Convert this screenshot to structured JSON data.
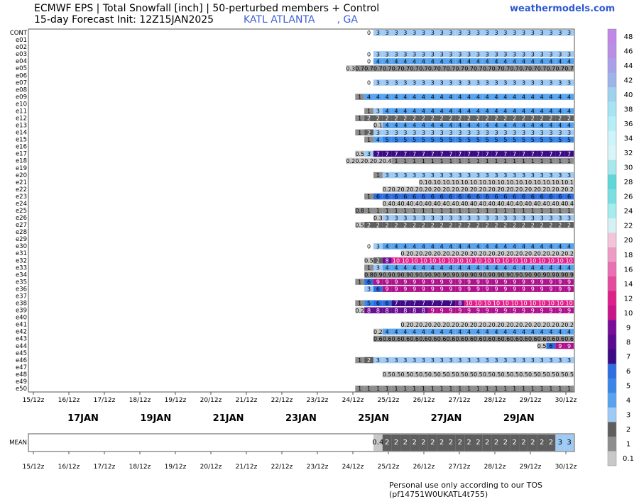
{
  "header": {
    "title_line1": "ECMWF EPS | Total Snowfall [inch] | 50-perturbed members + Control",
    "title_line2": "15-day Forecast Init: 12Z15JAN2025",
    "station": "KATL ATLANTA       , GA",
    "brand": "weathermodels.com"
  },
  "footer": "Personal use only according to our TOS (pf14751W0UKATL4t755)",
  "chart_data": {
    "type": "heatmap",
    "x_tick_labels": [
      "15/12z",
      "16/12z",
      "17/12z",
      "18/12z",
      "19/12z",
      "20/12z",
      "21/12z",
      "22/12z",
      "23/12z",
      "24/12z",
      "25/12z",
      "26/12z",
      "27/12z",
      "28/12z",
      "29/12z",
      "30/12z"
    ],
    "day_labels": [
      "17JAN",
      "19JAN",
      "21JAN",
      "23JAN",
      "25JAN",
      "27JAN",
      "29JAN"
    ],
    "x_start": "15/12z",
    "x_step_hours": 6,
    "members": [
      {
        "name": "CONT",
        "values": [
          0,
          3,
          3,
          3,
          3,
          3,
          3,
          3,
          3,
          3,
          3,
          3,
          3,
          3,
          3,
          3,
          3,
          3,
          3,
          3,
          3,
          3,
          3
        ]
      },
      {
        "name": "e01",
        "values": []
      },
      {
        "name": "e02",
        "values": []
      },
      {
        "name": "e03",
        "values": [
          0,
          3,
          3,
          3,
          3,
          3,
          3,
          3,
          3,
          3,
          3,
          3,
          3,
          3,
          3,
          3,
          3,
          3,
          3,
          3,
          3,
          3,
          3
        ]
      },
      {
        "name": "e04",
        "values": [
          0,
          4,
          4,
          4,
          4,
          4,
          4,
          4,
          4,
          4,
          4,
          4,
          4,
          4,
          4,
          4,
          4,
          4,
          4,
          4,
          4,
          4,
          4
        ]
      },
      {
        "name": "e05",
        "values": [
          0.3,
          0.7,
          0.7,
          0.7,
          0.7,
          0.7,
          0.7,
          0.7,
          0.7,
          0.7,
          0.7,
          0.7,
          0.7,
          0.7,
          0.7,
          0.7,
          0.7,
          0.7,
          0.7,
          0.7,
          0.7,
          0.7,
          0.7,
          0.7,
          0.7
        ]
      },
      {
        "name": "e06",
        "values": []
      },
      {
        "name": "e07",
        "values": [
          0,
          3,
          3,
          3,
          3,
          3,
          3,
          3,
          3,
          3,
          3,
          3,
          3,
          3,
          3,
          3,
          3,
          3,
          3,
          3,
          3,
          3,
          3
        ]
      },
      {
        "name": "e08",
        "values": []
      },
      {
        "name": "e09",
        "values": [
          1,
          4,
          4,
          4,
          4,
          4,
          4,
          4,
          4,
          4,
          4,
          4,
          4,
          4,
          4,
          4,
          4,
          4,
          4,
          4,
          4,
          4,
          4,
          4
        ]
      },
      {
        "name": "e10",
        "values": []
      },
      {
        "name": "e11",
        "values": [
          1,
          3,
          4,
          4,
          4,
          4,
          4,
          4,
          4,
          4,
          4,
          4,
          4,
          4,
          4,
          4,
          4,
          4,
          4,
          4,
          4,
          4,
          4
        ]
      },
      {
        "name": "e12",
        "values": [
          1,
          2,
          2,
          2,
          2,
          2,
          2,
          2,
          2,
          2,
          2,
          2,
          2,
          2,
          2,
          2,
          2,
          2,
          2,
          2,
          2,
          2,
          2,
          2
        ]
      },
      {
        "name": "e13",
        "values": [
          0.1,
          4,
          4,
          4,
          4,
          4,
          4,
          4,
          4,
          4,
          4,
          4,
          4,
          4,
          4,
          4,
          4,
          4,
          4,
          4,
          4,
          4
        ]
      },
      {
        "name": "e14",
        "values": [
          1,
          2,
          3,
          3,
          3,
          3,
          3,
          3,
          3,
          3,
          3,
          3,
          3,
          3,
          3,
          3,
          3,
          3,
          3,
          3,
          3,
          3,
          3,
          3
        ]
      },
      {
        "name": "e15",
        "values": [
          1,
          4,
          5,
          5,
          5,
          5,
          5,
          5,
          5,
          5,
          5,
          5,
          5,
          5,
          5,
          5,
          5,
          5,
          5,
          5,
          5,
          5,
          5
        ]
      },
      {
        "name": "e16",
        "values": []
      },
      {
        "name": "e17",
        "values": [
          0.5,
          3,
          7,
          7,
          7,
          7,
          7,
          7,
          7,
          7,
          7,
          7,
          7,
          7,
          7,
          7,
          7,
          7,
          7,
          7,
          7,
          7,
          7,
          7
        ]
      },
      {
        "name": "e18",
        "values": [
          0.2,
          0.2,
          0.2,
          0.2,
          0.4,
          1,
          1,
          1,
          1,
          1,
          1,
          1,
          1,
          1,
          1,
          1,
          1,
          1,
          1,
          1,
          1,
          1,
          1,
          1,
          1
        ]
      },
      {
        "name": "e19",
        "values": []
      },
      {
        "name": "e20",
        "values": [
          1,
          3,
          3,
          3,
          3,
          3,
          3,
          3,
          3,
          3,
          3,
          3,
          3,
          3,
          3,
          3,
          3,
          3,
          3,
          3,
          3,
          3
        ]
      },
      {
        "name": "e21",
        "values": [
          0.1,
          0.1,
          0.1,
          0.1,
          0.1,
          0.1,
          0.1,
          0.1,
          0.1,
          0.1,
          0.1,
          0.1,
          0.1,
          0.1,
          0.1,
          0.1,
          0.1
        ]
      },
      {
        "name": "e22",
        "values": [
          0.2,
          0.2,
          0.2,
          0.2,
          0.2,
          0.2,
          0.2,
          0.2,
          0.2,
          0.2,
          0.2,
          0.2,
          0.2,
          0.2,
          0.2,
          0.2,
          0.2,
          0.2,
          0.2,
          0.2,
          0.2
        ]
      },
      {
        "name": "e23",
        "values": [
          1,
          6,
          6,
          6,
          6,
          6,
          6,
          6,
          6,
          6,
          6,
          6,
          6,
          6,
          6,
          6,
          6,
          6,
          6,
          6,
          6,
          6,
          6
        ]
      },
      {
        "name": "e24",
        "values": [
          0.4,
          0.4,
          0.4,
          0.4,
          0.4,
          0.4,
          0.4,
          0.4,
          0.4,
          0.4,
          0.4,
          0.4,
          0.4,
          0.4,
          0.4,
          0.4,
          0.4,
          0.4,
          0.4,
          0.4,
          0.4
        ]
      },
      {
        "name": "e25",
        "values": [
          0.8,
          1,
          1,
          1,
          1,
          1,
          1,
          1,
          1,
          1,
          1,
          1,
          1,
          1,
          1,
          1,
          1,
          1,
          1,
          1,
          1,
          1,
          1,
          1
        ]
      },
      {
        "name": "e26",
        "values": [
          0.3,
          3,
          3,
          3,
          3,
          3,
          3,
          3,
          3,
          3,
          3,
          3,
          3,
          3,
          3,
          3,
          3,
          3,
          3,
          3,
          3,
          3
        ]
      },
      {
        "name": "e27",
        "values": [
          0.5,
          2,
          2,
          2,
          2,
          2,
          2,
          2,
          2,
          2,
          2,
          2,
          2,
          2,
          2,
          2,
          2,
          2,
          2,
          2,
          2,
          2,
          2,
          2
        ]
      },
      {
        "name": "e28",
        "values": []
      },
      {
        "name": "e29",
        "values": []
      },
      {
        "name": "e30",
        "values": [
          0,
          3,
          4,
          4,
          4,
          4,
          4,
          4,
          4,
          4,
          4,
          4,
          4,
          4,
          4,
          4,
          4,
          4,
          4,
          4,
          4,
          4,
          4
        ]
      },
      {
        "name": "e31",
        "values": [
          0.2,
          0.2,
          0.2,
          0.2,
          0.2,
          0.2,
          0.2,
          0.2,
          0.2,
          0.2,
          0.2,
          0.2,
          0.2,
          0.2,
          0.2,
          0.2,
          0.2,
          0.2,
          0.2
        ]
      },
      {
        "name": "e32",
        "values": [
          0.5,
          2,
          8,
          10,
          10,
          10,
          10,
          10,
          10,
          10,
          10,
          10,
          10,
          10,
          10,
          10,
          10,
          10,
          10,
          10,
          10,
          10,
          10
        ]
      },
      {
        "name": "e33",
        "values": [
          1,
          3,
          4,
          4,
          4,
          4,
          4,
          4,
          4,
          4,
          4,
          4,
          4,
          4,
          4,
          4,
          4,
          4,
          4,
          4,
          4,
          4,
          4
        ]
      },
      {
        "name": "e34",
        "values": [
          0.8,
          0.9,
          0.9,
          0.9,
          0.9,
          0.9,
          0.9,
          0.9,
          0.9,
          0.9,
          0.9,
          0.9,
          0.9,
          0.9,
          0.9,
          0.9,
          0.9,
          0.9,
          0.9,
          0.9,
          0.9,
          0.9,
          0.9
        ]
      },
      {
        "name": "e35",
        "values": [
          1.0,
          6,
          9,
          9,
          9,
          9,
          9,
          9,
          9,
          9,
          9,
          9,
          9,
          9,
          9,
          9,
          9,
          9,
          9,
          9,
          9,
          9,
          9,
          9
        ]
      },
      {
        "name": "e36",
        "values": [
          3,
          6,
          9,
          9,
          9,
          9,
          9,
          9,
          9,
          9,
          9,
          9,
          9,
          9,
          9,
          9,
          9,
          9,
          9,
          9,
          9,
          9,
          9
        ]
      },
      {
        "name": "e37",
        "values": []
      },
      {
        "name": "e38",
        "values": [
          1,
          5,
          6,
          6,
          7,
          7,
          7,
          7,
          7,
          7,
          7,
          8,
          10,
          10,
          10,
          10,
          10,
          10,
          10,
          10,
          10,
          10,
          10,
          10
        ]
      },
      {
        "name": "e39",
        "values": [
          0.2,
          8,
          8,
          8,
          8,
          8,
          8,
          8,
          9,
          9,
          9,
          9,
          9,
          9,
          9,
          9,
          9,
          9,
          9,
          9,
          9,
          9,
          9,
          9
        ]
      },
      {
        "name": "e40",
        "values": []
      },
      {
        "name": "e41",
        "values": [
          0.2,
          0.2,
          0.2,
          0.2,
          0.2,
          0.2,
          0.2,
          0.2,
          0.2,
          0.2,
          0.2,
          0.2,
          0.2,
          0.2,
          0.2,
          0.2,
          0.2,
          0.2,
          0.2
        ]
      },
      {
        "name": "e42",
        "values": [
          0.2,
          4,
          4,
          4,
          4,
          4,
          4,
          4,
          4,
          4,
          4,
          4,
          4,
          4,
          4,
          4,
          4,
          4,
          4,
          4,
          4,
          4
        ]
      },
      {
        "name": "e43",
        "values": [
          0.6,
          0.6,
          0.6,
          0.6,
          0.6,
          0.6,
          0.6,
          0.6,
          0.6,
          0.6,
          0.6,
          0.6,
          0.6,
          0.6,
          0.6,
          0.6,
          0.6,
          0.6,
          0.6,
          0.6,
          0.6,
          0.6
        ]
      },
      {
        "name": "e44",
        "values": [
          0.5,
          6,
          9,
          9
        ]
      },
      {
        "name": "e45",
        "values": []
      },
      {
        "name": "e46",
        "values": [
          1,
          2,
          3,
          3,
          3,
          3,
          3,
          3,
          3,
          3,
          3,
          3,
          3,
          3,
          3,
          3,
          3,
          3,
          3,
          3,
          3,
          3,
          3,
          3
        ]
      },
      {
        "name": "e47",
        "values": []
      },
      {
        "name": "e48",
        "values": [
          0.5,
          0.5,
          0.5,
          0.5,
          0.5,
          0.5,
          0.5,
          0.5,
          0.5,
          0.5,
          0.5,
          0.5,
          0.5,
          0.5,
          0.5,
          0.5,
          0.5,
          0.5,
          0.5,
          0.5,
          0.5
        ]
      },
      {
        "name": "e49",
        "values": []
      },
      {
        "name": "e50",
        "values": [
          1,
          1,
          1,
          1,
          1,
          1,
          1,
          1,
          1,
          1,
          1,
          1,
          1,
          1,
          1,
          1,
          1,
          1,
          1,
          1,
          1,
          1,
          1,
          1
        ]
      }
    ],
    "mean": {
      "name": "MEAN",
      "values": [
        0.4,
        2,
        2,
        2,
        2,
        2,
        2,
        2,
        2,
        2,
        2,
        2,
        2,
        2,
        2,
        2,
        2,
        2,
        2,
        2,
        3,
        3
      ]
    },
    "colorbar": {
      "labels": [
        "48",
        "46",
        "44",
        "42",
        "40",
        "38",
        "36",
        "34",
        "32",
        "30",
        "28",
        "26",
        "24",
        "22",
        "20",
        "18",
        "16",
        "14",
        "12",
        "10",
        "9",
        "8",
        "7",
        "6",
        "5",
        "4",
        "3",
        "2",
        "1",
        "0.1"
      ],
      "colors": [
        "#c087e8",
        "#b98fe6",
        "#a9a0e8",
        "#9cb4ea",
        "#9fd2ef",
        "#a7e4f3",
        "#b5eef7",
        "#cdf3fb",
        "#d8f5f8",
        "#a8e7ec",
        "#5fd7da",
        "#79dfe3",
        "#a5ecee",
        "#d6f1f4",
        "#f2c5d9",
        "#ee9cc6",
        "#e970b2",
        "#e44a9e",
        "#df1f8a",
        "#c8158a",
        "#7a0c9a",
        "#5a0b8f",
        "#3d0a86",
        "#2f6ee0",
        "#3a86e8",
        "#58a3ef",
        "#9fcaf5",
        "#5e5e5e",
        "#8e8e8e",
        "#c8c8c8"
      ]
    },
    "ranges": [
      {
        "max": 0.5,
        "color": "#c8c8c8"
      },
      {
        "max": 1.2,
        "color": "#8e8e8e"
      },
      {
        "max": 2.1,
        "color": "#5e5e5e"
      },
      {
        "max": 3.1,
        "color": "#9fcaf5"
      },
      {
        "max": 4.1,
        "color": "#58a3ef"
      },
      {
        "max": 5.1,
        "color": "#3a86e8"
      },
      {
        "max": 6.1,
        "color": "#2f6ee0"
      },
      {
        "max": 7.1,
        "color": "#3d0a86"
      },
      {
        "max": 8.1,
        "color": "#6a0c92"
      },
      {
        "max": 9.1,
        "color": "#b0118c"
      },
      {
        "max": 10.1,
        "color": "#df1f8a"
      }
    ]
  }
}
